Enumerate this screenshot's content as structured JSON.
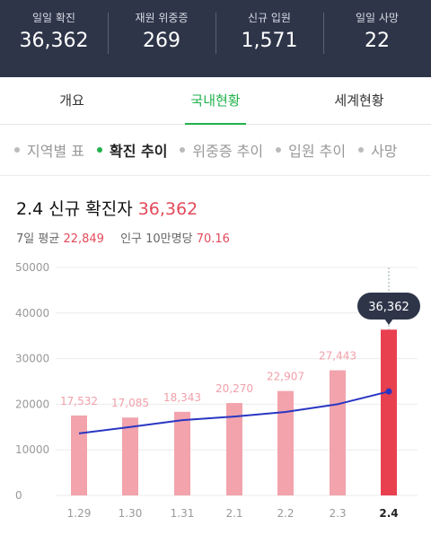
{
  "stats": [
    {
      "label": "일일 확진",
      "value": "36,362"
    },
    {
      "label": "재원 위중증",
      "value": "269"
    },
    {
      "label": "신규 입원",
      "value": "1,571"
    },
    {
      "label": "일일 사망",
      "value": "22"
    }
  ],
  "tabs": [
    {
      "label": "개요",
      "active": false
    },
    {
      "label": "국내현황",
      "active": true
    },
    {
      "label": "세계현황",
      "active": false
    }
  ],
  "subtabs": [
    {
      "label": "지역별 표",
      "active": false
    },
    {
      "label": "확진 추이",
      "active": true
    },
    {
      "label": "위중증 추이",
      "active": false
    },
    {
      "label": "입원 추이",
      "active": false
    },
    {
      "label": "사망",
      "active": false
    }
  ],
  "header": {
    "title": "2.4 신규 확진자",
    "value": "36,362",
    "avg_label": "7일 평균",
    "avg_value": "22,849",
    "per_label": "인구 10만명당",
    "per_value": "70.16"
  },
  "colors": {
    "bar": "#f2a3ac",
    "bar_highlight": "#e8404f",
    "line": "#2a36c2",
    "accent_green": "#22b24c",
    "header_bg": "#2e3549"
  },
  "chart_data": {
    "type": "bar",
    "categories": [
      "1.29",
      "1.30",
      "1.31",
      "2.1",
      "2.2",
      "2.3",
      "2.4"
    ],
    "values": [
      17532,
      17085,
      18343,
      20270,
      22907,
      27443,
      36362
    ],
    "value_labels": [
      "17,532",
      "17,085",
      "18,343",
      "20,270",
      "22,907",
      "27,443",
      "36,362"
    ],
    "highlight_index": 6,
    "line_series": {
      "values": [
        13600,
        15000,
        16500,
        17300,
        18300,
        20000,
        22800
      ]
    },
    "ylim": [
      0,
      50000
    ],
    "yticks": [
      0,
      10000,
      20000,
      30000,
      40000,
      50000
    ],
    "grid": true
  }
}
